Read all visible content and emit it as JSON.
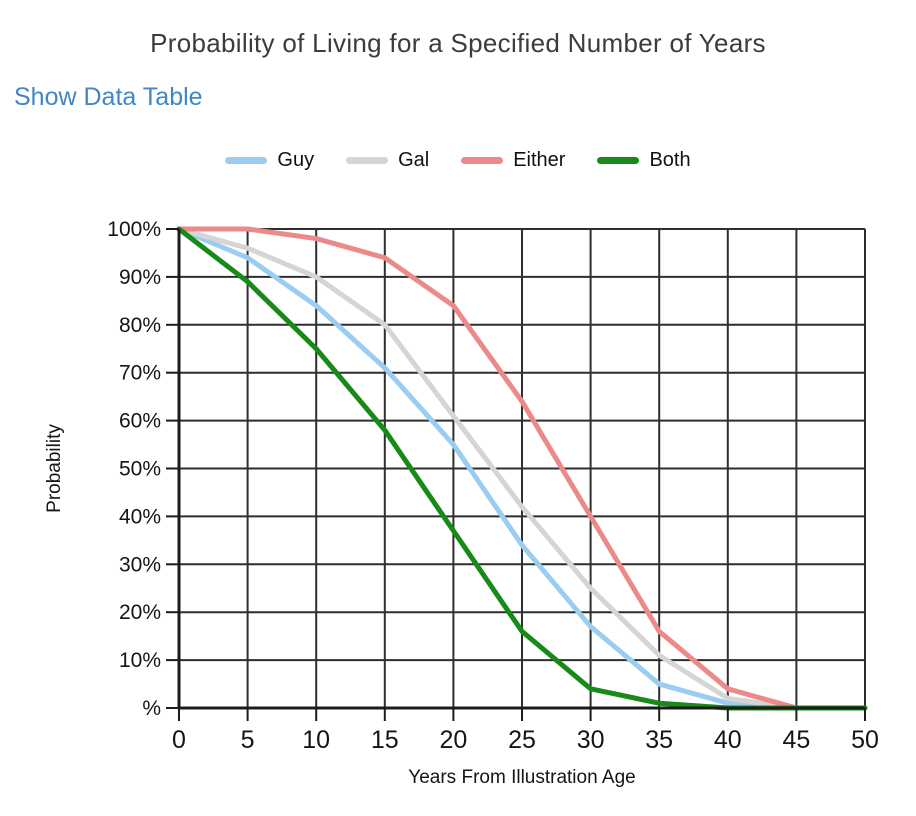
{
  "controls": {
    "show_data_table_label": "Show Data Table",
    "link_color": "#4186c6"
  },
  "chart_data": {
    "type": "line",
    "title": "Probability of Living for a Specified Number of Years",
    "xlabel": "Years From Illustration Age",
    "ylabel": "Probability",
    "xlim": [
      0,
      50
    ],
    "ylim": [
      0,
      100
    ],
    "grid": true,
    "legend_position": "top",
    "grid_color": "#2e2e2e",
    "x": [
      0,
      5,
      10,
      15,
      20,
      25,
      30,
      35,
      40,
      45,
      50
    ],
    "x_tick_labels": [
      "0",
      "5",
      "10",
      "15",
      "20",
      "25",
      "30",
      "35",
      "40",
      "45",
      "50"
    ],
    "y_ticks": [
      100,
      90,
      80,
      70,
      60,
      50,
      40,
      30,
      20,
      10,
      0
    ],
    "y_tick_labels": [
      "100%",
      "90%",
      "80%",
      "70%",
      "60%",
      "50%",
      "40%",
      "30%",
      "20%",
      "10%",
      "%"
    ],
    "series": [
      {
        "name": "Guy",
        "color": "#9bcdf0",
        "values": [
          100,
          94,
          84,
          71,
          55,
          34,
          17,
          5,
          1,
          0,
          0
        ]
      },
      {
        "name": "Gal",
        "color": "#d5d5d5",
        "values": [
          100,
          96,
          90,
          80,
          61,
          42,
          25,
          11,
          2,
          0,
          0
        ]
      },
      {
        "name": "Either",
        "color": "#ec8a8a",
        "values": [
          100,
          100,
          98,
          94,
          84,
          64,
          40,
          16,
          4,
          0,
          0
        ]
      },
      {
        "name": "Both",
        "color": "#178a17",
        "values": [
          100,
          89,
          75,
          58,
          37,
          16,
          4,
          1,
          0,
          0,
          0
        ]
      }
    ]
  }
}
